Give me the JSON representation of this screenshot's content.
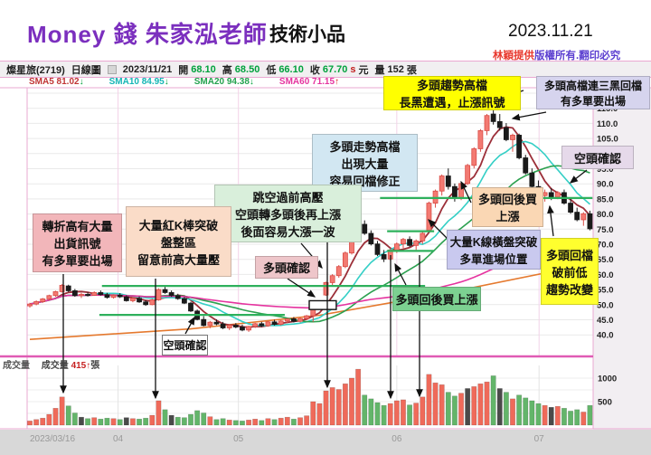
{
  "header": {
    "brand": "Money 錢 朱家泓老師",
    "title": "技術小品",
    "date": "2023.11.21",
    "credit_red": "林穎提供",
    "credit_purple": "版權所有.翻印必究"
  },
  "toolbar": {
    "stock": "燦星旅(2719)",
    "period": "日線圖",
    "date": "2023/11/21",
    "open_label": "開",
    "open": "68.10",
    "high_label": "高",
    "high": "68.50",
    "low_label": "低",
    "low": "66.10",
    "close_label": "收",
    "close": "67.70",
    "close_suffix": "s",
    "unit_label": "元",
    "vol_label": "量",
    "volume": "152",
    "vol_unit": "張"
  },
  "sma_legend": [
    {
      "label": "SMA5",
      "value": "81.02",
      "dir": "↓",
      "color": "#c03434"
    },
    {
      "label": "SMA10",
      "value": "84.95",
      "dir": "↓",
      "color": "#13b5b5"
    },
    {
      "label": "SMA20",
      "value": "94.38",
      "dir": "↓",
      "color": "#23a14e"
    },
    {
      "label": "SMA60",
      "value": "71.15",
      "dir": "↑",
      "color": "#e5339f"
    }
  ],
  "volume_pane": {
    "pane_label": "成交量",
    "series_label": "成交量",
    "value": "415",
    "arrow": "↑",
    "unit": "張"
  },
  "annotations": [
    {
      "id": "top_yellow",
      "lines": [
        "多頭趨勢高檔",
        "長黑遭遇，止漲訊號"
      ],
      "bg": "#ffff00"
    },
    {
      "id": "top_lavender",
      "lines": [
        "多頭高檔連三黑回檔",
        "有多單要出場"
      ],
      "bg": "#d6d4ee"
    },
    {
      "id": "high_vol_blue",
      "lines": [
        "多頭走勢高檔",
        "出現大量",
        "容易回檔修正"
      ],
      "bg": "#d2e7f2"
    },
    {
      "id": "bear_top",
      "lines": [
        "空頭確認"
      ],
      "bg": "#e6d9ea"
    },
    {
      "id": "gap_green",
      "lines": [
        "跳空過前高壓",
        "空頭轉多頭後再上漲",
        "後面容易大漲一波"
      ],
      "bg": "#d9efdb"
    },
    {
      "id": "buy_orange",
      "lines": [
        "多頭回後買",
        "上漲"
      ],
      "bg": "#fad7b4"
    },
    {
      "id": "left_pink",
      "lines": [
        "轉折高有大量",
        "出貨訊號",
        "有多單要出場"
      ],
      "bg": "#f2b6ba"
    },
    {
      "id": "left_peach",
      "lines": [
        "大量紅K棒突破",
        "盤整區",
        "留意前高大量壓"
      ],
      "bg": "#fadcc8"
    },
    {
      "id": "bull_pink",
      "lines": [
        "多頭確認"
      ],
      "bg": "#eec6ca"
    },
    {
      "id": "breakout_lav",
      "lines": [
        "大量K線橫盤突破",
        "多單進場位置"
      ],
      "bg": "#c9c9ef"
    },
    {
      "id": "change_yellow",
      "lines": [
        "多頭回檔",
        "破前低",
        "趨勢改變"
      ],
      "bg": "#ffff2e"
    },
    {
      "id": "buy_green",
      "lines": [
        "多頭回後買上漲"
      ],
      "bg": "#7cd191"
    },
    {
      "id": "bear_bottom",
      "lines": [
        "空頭確認"
      ],
      "bg": "#ffffff",
      "border": "#777777"
    }
  ],
  "chart_data": {
    "type": "candlestick+volume",
    "price_axis": {
      "min": 40,
      "max": 120,
      "tick_step": 5,
      "tick_labels": [
        "120.0",
        "115.0",
        "110.0",
        "105.0",
        "100.0",
        "95.0",
        "90.0",
        "85.0",
        "80.0",
        "75.0",
        "70.0",
        "65.0",
        "60.0",
        "55.0",
        "50.0",
        "45.0",
        "40.0"
      ]
    },
    "volume_axis": {
      "tick_labels": [
        "1000",
        "500"
      ],
      "tick_values": [
        1000,
        500
      ]
    },
    "x_ticks": [
      {
        "label": "2023/03/16",
        "i": 0
      },
      {
        "label": "04",
        "i": 13.7
      },
      {
        "label": "05",
        "i": 32.4
      },
      {
        "label": "06",
        "i": 57.0
      },
      {
        "label": "07",
        "i": 79.1
      }
    ],
    "candles": [
      [
        49.6,
        50.6,
        49.0,
        50.2,
        90
      ],
      [
        50.2,
        51.4,
        49.8,
        51.0,
        120
      ],
      [
        51.0,
        52.2,
        50.6,
        51.9,
        150
      ],
      [
        51.9,
        53.3,
        51.5,
        53.0,
        230
      ],
      [
        53.0,
        54.6,
        52.6,
        54.3,
        360
      ],
      [
        54.3,
        56.8,
        54.0,
        56.4,
        600
      ],
      [
        56.2,
        56.6,
        54.2,
        54.6,
        410
      ],
      [
        54.6,
        55.2,
        52.6,
        53.0,
        260
      ],
      [
        53.0,
        53.9,
        52.2,
        53.4,
        170
      ],
      [
        53.4,
        54.1,
        52.7,
        53.1,
        140
      ],
      [
        53.1,
        54.4,
        52.9,
        54.0,
        160
      ],
      [
        54.0,
        54.7,
        53.0,
        53.3,
        130
      ],
      [
        53.3,
        53.9,
        52.0,
        52.4,
        150
      ],
      [
        52.4,
        53.4,
        52.0,
        53.1,
        140
      ],
      [
        53.1,
        53.8,
        52.2,
        52.6,
        120
      ],
      [
        52.6,
        53.1,
        51.0,
        51.3,
        160
      ],
      [
        51.3,
        52.4,
        50.8,
        52.1,
        140
      ],
      [
        52.1,
        52.7,
        50.6,
        50.9,
        130
      ],
      [
        50.9,
        51.5,
        49.6,
        50.0,
        150
      ],
      [
        50.0,
        51.9,
        49.8,
        51.6,
        210
      ],
      [
        51.6,
        55.4,
        51.3,
        55.0,
        520
      ],
      [
        55.0,
        55.9,
        53.6,
        54.0,
        330
      ],
      [
        54.0,
        54.7,
        52.6,
        53.0,
        210
      ],
      [
        53.0,
        53.6,
        51.6,
        52.0,
        170
      ],
      [
        52.0,
        52.6,
        50.2,
        50.5,
        160
      ],
      [
        50.5,
        50.9,
        47.6,
        47.9,
        230
      ],
      [
        47.9,
        48.4,
        44.8,
        45.1,
        310
      ],
      [
        45.1,
        46.2,
        42.8,
        43.1,
        260
      ],
      [
        43.1,
        44.6,
        42.2,
        44.2,
        180
      ],
      [
        44.2,
        45.1,
        43.2,
        43.6,
        120
      ],
      [
        43.6,
        44.3,
        41.9,
        42.3,
        140
      ],
      [
        42.3,
        43.6,
        41.6,
        43.2,
        110
      ],
      [
        43.2,
        43.9,
        42.2,
        42.6,
        100
      ],
      [
        42.6,
        43.4,
        41.2,
        41.6,
        90
      ],
      [
        41.6,
        43.0,
        41.0,
        42.8,
        110
      ],
      [
        42.8,
        44.0,
        42.3,
        43.7,
        130
      ],
      [
        43.7,
        44.3,
        42.6,
        43.0,
        100
      ],
      [
        43.0,
        44.6,
        42.7,
        44.3,
        140
      ],
      [
        44.3,
        45.0,
        43.1,
        43.5,
        120
      ],
      [
        43.5,
        44.9,
        43.1,
        44.6,
        150
      ],
      [
        44.6,
        45.6,
        43.9,
        45.3,
        170
      ],
      [
        45.3,
        45.9,
        44.1,
        44.5,
        130
      ],
      [
        44.5,
        45.7,
        44.1,
        45.4,
        160
      ],
      [
        45.4,
        46.6,
        44.9,
        46.3,
        200
      ],
      [
        46.3,
        49.9,
        44.3,
        49.6,
        500
      ],
      [
        49.6,
        51.3,
        48.7,
        50.7,
        460
      ],
      [
        53.2,
        57.6,
        52.9,
        57.3,
        730
      ],
      [
        57.3,
        60.1,
        56.2,
        59.6,
        800
      ],
      [
        59.6,
        63.1,
        58.9,
        62.6,
        760
      ],
      [
        62.6,
        67.6,
        62.1,
        67.1,
        880
      ],
      [
        67.1,
        72.6,
        66.6,
        72.1,
        1000
      ],
      [
        72.1,
        77.6,
        71.1,
        77.1,
        1190
      ],
      [
        76.6,
        77.9,
        73.1,
        73.6,
        640
      ],
      [
        73.6,
        74.6,
        69.6,
        70.1,
        560
      ],
      [
        70.1,
        71.1,
        66.1,
        66.6,
        480
      ],
      [
        66.6,
        68.1,
        64.1,
        65.1,
        420
      ],
      [
        65.1,
        68.6,
        64.6,
        68.1,
        460
      ],
      [
        68.1,
        70.6,
        67.1,
        70.1,
        520
      ],
      [
        70.1,
        72.1,
        68.6,
        71.6,
        540
      ],
      [
        71.6,
        72.6,
        69.1,
        69.6,
        430
      ],
      [
        69.6,
        71.6,
        68.1,
        71.1,
        470
      ],
      [
        71.1,
        74.1,
        70.1,
        73.6,
        600
      ],
      [
        74.6,
        84.1,
        74.1,
        83.6,
        1080
      ],
      [
        83.6,
        88.1,
        82.1,
        87.6,
        900
      ],
      [
        87.6,
        93.1,
        86.1,
        92.6,
        860
      ],
      [
        92.6,
        95.1,
        88.1,
        89.1,
        700
      ],
      [
        89.1,
        90.1,
        84.1,
        85.1,
        620
      ],
      [
        85.1,
        90.6,
        84.6,
        90.1,
        680
      ],
      [
        90.1,
        96.6,
        89.6,
        96.1,
        780
      ],
      [
        96.1,
        102.1,
        95.1,
        101.6,
        820
      ],
      [
        101.6,
        108.1,
        100.6,
        107.6,
        880
      ],
      [
        107.6,
        113.1,
        106.1,
        112.6,
        920
      ],
      [
        113.1,
        118.6,
        109.6,
        110.6,
        1050
      ],
      [
        110.6,
        113.1,
        107.6,
        108.6,
        780
      ],
      [
        108.6,
        110.1,
        104.1,
        104.6,
        700
      ],
      [
        104.6,
        106.6,
        100.6,
        106.1,
        560
      ],
      [
        106.1,
        106.6,
        98.1,
        98.6,
        640
      ],
      [
        98.6,
        99.6,
        93.1,
        93.6,
        580
      ],
      [
        93.6,
        95.1,
        88.6,
        89.1,
        520
      ],
      [
        89.1,
        91.1,
        85.6,
        86.1,
        460
      ],
      [
        86.1,
        88.1,
        84.1,
        87.1,
        420
      ],
      [
        87.1,
        88.6,
        84.6,
        85.6,
        380
      ],
      [
        85.6,
        87.6,
        84.9,
        87.1,
        400
      ],
      [
        87.1,
        88.1,
        83.1,
        83.6,
        360
      ],
      [
        83.6,
        85.1,
        80.1,
        80.6,
        300
      ],
      [
        80.6,
        82.1,
        77.6,
        78.1,
        330
      ],
      [
        78.1,
        80.6,
        76.1,
        80.1,
        280
      ],
      [
        80.1,
        81.1,
        74.6,
        75.1,
        420
      ]
    ],
    "dark_volume_indices": [
      8,
      15,
      22,
      68,
      73,
      81
    ],
    "sma_windows": [
      5,
      10,
      20,
      60
    ],
    "green_lines": [
      {
        "price": 56.2,
        "i1": 11.2,
        "i2": 61.4
      },
      {
        "price": 46.6,
        "i1": 10.8,
        "i2": 39.6
      },
      {
        "price": 85.3,
        "i1": 54.4,
        "i2": 87.4
      },
      {
        "price": 74.3,
        "i1": 55.5,
        "i2": 62.8
      },
      {
        "price": 67.8,
        "i1": 55.5,
        "i2": 62.8
      }
    ],
    "consolidation_box": {
      "i1": 43.4,
      "i2": 47.6,
      "p1": 48.4,
      "p2": 51.3
    },
    "season_line_points": [
      {
        "i": 0,
        "p": 38.5
      },
      {
        "i": 25,
        "p": 42.0
      },
      {
        "i": 45,
        "p": 46.5
      },
      {
        "i": 65,
        "p": 54.0
      },
      {
        "i": 87,
        "p": 63.5
      }
    ],
    "colors": {
      "candle_up": "#f37a72",
      "candle_up_edge": "#d94b45",
      "candle_down": "#1a1a1a",
      "vol_up": "#ef6a5a",
      "vol_down": "#63b56a",
      "vol_dark": "#4a4a4a",
      "sma5": "#9c2f39",
      "sma10": "#35cfc6",
      "sma20": "#2ba04f",
      "sma60": "#e5339f",
      "season": "#e5792e",
      "hand_line_green": "#2eb05c",
      "frame_pink": "#e05bb4"
    }
  }
}
